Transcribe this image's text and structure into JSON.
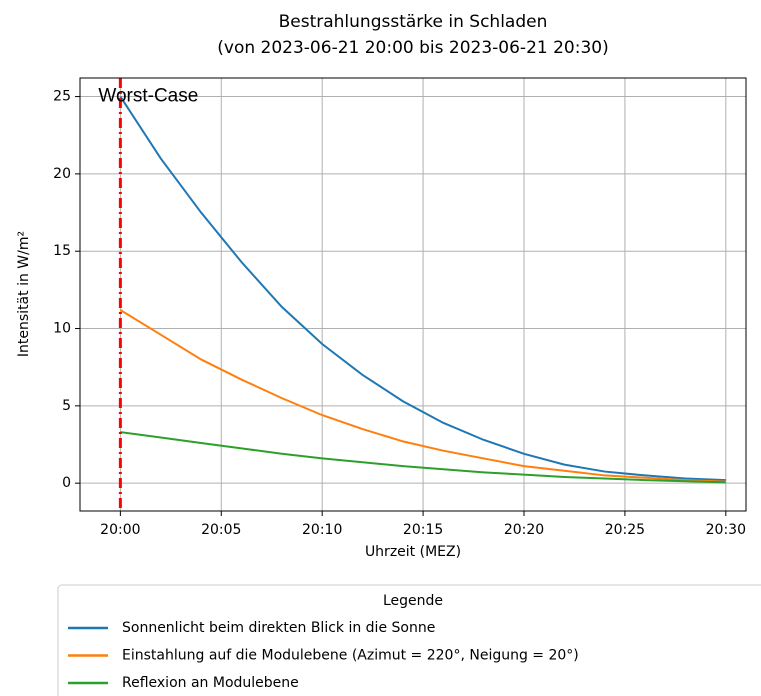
{
  "chart_data": {
    "type": "line",
    "title": "Bestrahlungsstärke in Schladen",
    "subtitle": "(von 2023-06-21 20:00 bis 2023-06-21 20:30)",
    "x_label": "Uhrzeit (MEZ)",
    "y_label": "Intensität in W/m²",
    "x": [
      "20:00",
      "20:02",
      "20:04",
      "20:06",
      "20:08",
      "20:10",
      "20:12",
      "20:14",
      "20:16",
      "20:18",
      "20:20",
      "20:22",
      "20:24",
      "20:26",
      "20:28",
      "20:30"
    ],
    "series": [
      {
        "name": "Sonnenlicht beim direkten Blick in die Sonne",
        "color": "#1f77b4",
        "values": [
          25,
          21.0,
          17.5,
          14.3,
          11.4,
          9.0,
          7.0,
          5.3,
          3.9,
          2.8,
          1.9,
          1.2,
          0.75,
          0.5,
          0.3,
          0.2
        ]
      },
      {
        "name": "Einstahlung auf die Modulebene (Azimut = 220°, Neigung = 20°)",
        "color": "#ff7f0e",
        "values": [
          11.2,
          9.6,
          8.0,
          6.7,
          5.5,
          4.4,
          3.5,
          2.7,
          2.1,
          1.6,
          1.1,
          0.8,
          0.5,
          0.35,
          0.2,
          0.1
        ]
      },
      {
        "name": "Reflexion an Modulebene",
        "color": "#2ca02c",
        "values": [
          3.3,
          2.95,
          2.6,
          2.25,
          1.9,
          1.6,
          1.35,
          1.1,
          0.9,
          0.7,
          0.55,
          0.4,
          0.3,
          0.2,
          0.12,
          0.05
        ]
      }
    ],
    "xlim": [
      "19:58",
      "20:31"
    ],
    "xticks": [
      "20:00",
      "20:05",
      "20:10",
      "20:15",
      "20:20",
      "20:25",
      "20:30"
    ],
    "ylim": [
      -1.8,
      26.2
    ],
    "yticks": [
      0,
      5,
      10,
      15,
      20,
      25
    ],
    "grid": true,
    "legend_title": "Legende",
    "legend_position": "below",
    "annotation": {
      "text": "Worst-Case",
      "x": "20:00",
      "color": "#ff0000"
    }
  }
}
